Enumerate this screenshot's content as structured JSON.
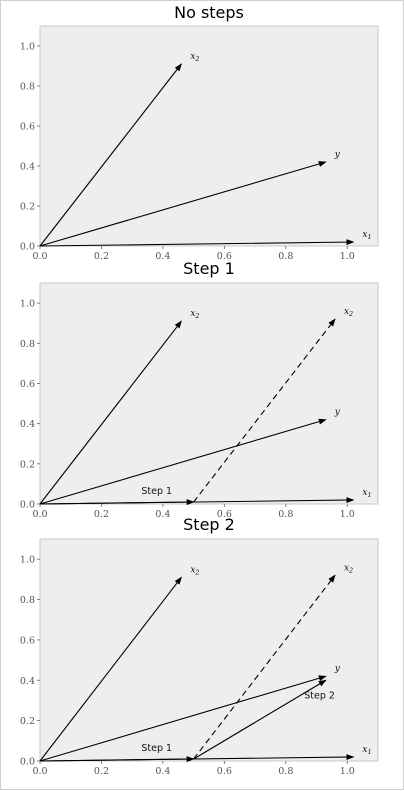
{
  "chart_data": [
    {
      "type": "vector",
      "title": "No steps",
      "xlim": [
        0,
        1.1
      ],
      "ylim": [
        0,
        1.1
      ],
      "xticks": [
        "0.0",
        "0.2",
        "0.4",
        "0.6",
        "0.8",
        "1.0"
      ],
      "yticks": [
        "0.0",
        "0.2",
        "0.4",
        "0.6",
        "0.8",
        "1.0"
      ],
      "grid": false,
      "vectors": [
        {
          "name": "x2",
          "label": "x",
          "sub": "2",
          "from": [
            0,
            0
          ],
          "to": [
            0.46,
            0.91
          ],
          "style": "solid"
        },
        {
          "name": "y",
          "label": "y",
          "sub": "",
          "from": [
            0,
            0
          ],
          "to": [
            0.93,
            0.42
          ],
          "style": "solid"
        },
        {
          "name": "x1",
          "label": "x",
          "sub": "1",
          "from": [
            0,
            0
          ],
          "to": [
            1.02,
            0.02
          ],
          "style": "solid"
        }
      ],
      "annotations": []
    },
    {
      "type": "vector",
      "title": "Step 1",
      "xlim": [
        0,
        1.1
      ],
      "ylim": [
        0,
        1.1
      ],
      "xticks": [
        "0.0",
        "0.2",
        "0.4",
        "0.6",
        "0.8",
        "1.0"
      ],
      "yticks": [
        "0.0",
        "0.2",
        "0.4",
        "0.6",
        "0.8",
        "1.0"
      ],
      "grid": false,
      "vectors": [
        {
          "name": "x2",
          "label": "x",
          "sub": "2",
          "from": [
            0,
            0
          ],
          "to": [
            0.46,
            0.91
          ],
          "style": "solid"
        },
        {
          "name": "y",
          "label": "y",
          "sub": "",
          "from": [
            0,
            0
          ],
          "to": [
            0.93,
            0.42
          ],
          "style": "solid"
        },
        {
          "name": "x1",
          "label": "x",
          "sub": "1",
          "from": [
            0,
            0
          ],
          "to": [
            1.02,
            0.02
          ],
          "style": "solid"
        },
        {
          "name": "step1",
          "label": "",
          "sub": "",
          "from": [
            0,
            0
          ],
          "to": [
            0.5,
            0.01
          ],
          "style": "solid"
        },
        {
          "name": "x2-shifted",
          "label": "x",
          "sub": "2",
          "from": [
            0.5,
            0.01
          ],
          "to": [
            0.96,
            0.92
          ],
          "style": "dashed"
        }
      ],
      "annotations": [
        {
          "text": "Step 1",
          "at": [
            0.38,
            0.05
          ]
        }
      ]
    },
    {
      "type": "vector",
      "title": "Step 2",
      "xlim": [
        0,
        1.1
      ],
      "ylim": [
        0,
        1.1
      ],
      "xticks": [
        "0.0",
        "0.2",
        "0.4",
        "0.6",
        "0.8",
        "1.0"
      ],
      "yticks": [
        "0.0",
        "0.2",
        "0.4",
        "0.6",
        "0.8",
        "1.0"
      ],
      "grid": false,
      "vectors": [
        {
          "name": "x2",
          "label": "x",
          "sub": "2",
          "from": [
            0,
            0
          ],
          "to": [
            0.46,
            0.91
          ],
          "style": "solid"
        },
        {
          "name": "y",
          "label": "y",
          "sub": "",
          "from": [
            0,
            0
          ],
          "to": [
            0.93,
            0.42
          ],
          "style": "solid"
        },
        {
          "name": "x1",
          "label": "x",
          "sub": "1",
          "from": [
            0,
            0
          ],
          "to": [
            1.02,
            0.02
          ],
          "style": "solid"
        },
        {
          "name": "step1",
          "label": "",
          "sub": "",
          "from": [
            0,
            0
          ],
          "to": [
            0.5,
            0.01
          ],
          "style": "solid"
        },
        {
          "name": "x2-shifted",
          "label": "x",
          "sub": "2",
          "from": [
            0.5,
            0.01
          ],
          "to": [
            0.96,
            0.92
          ],
          "style": "dashed"
        },
        {
          "name": "step2",
          "label": "",
          "sub": "",
          "from": [
            0.5,
            0.01
          ],
          "to": [
            0.93,
            0.4
          ],
          "style": "solid"
        }
      ],
      "annotations": [
        {
          "text": "Step 1",
          "at": [
            0.38,
            0.05
          ]
        },
        {
          "text": "Step 2",
          "at": [
            0.91,
            0.31
          ]
        }
      ]
    }
  ]
}
